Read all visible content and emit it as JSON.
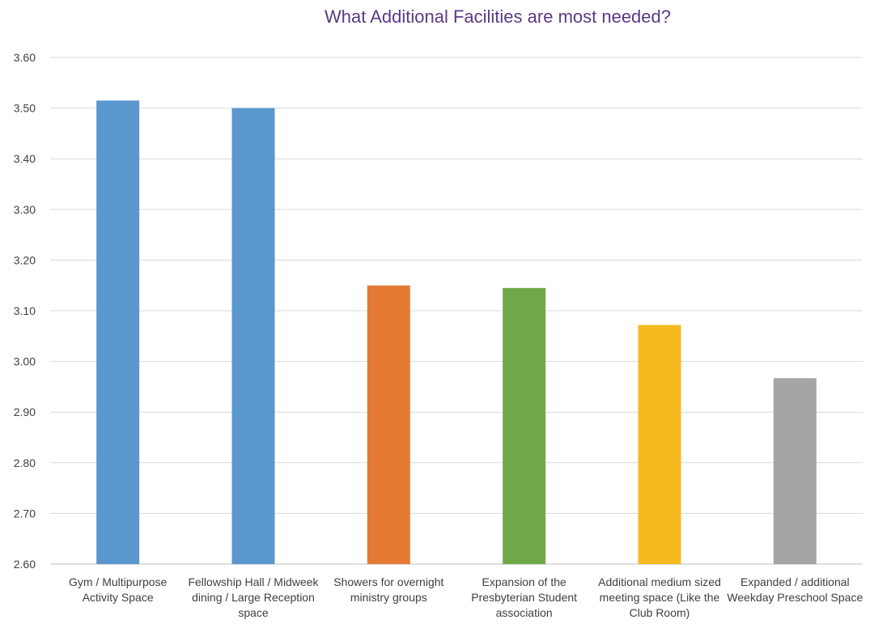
{
  "chart_data": {
    "type": "bar",
    "title": "What Additional Facilities are most needed?",
    "xlabel": "",
    "ylabel": "",
    "ylim": [
      2.6,
      3.6
    ],
    "yticks": [
      "2.60",
      "2.70",
      "2.80",
      "2.90",
      "3.00",
      "3.10",
      "3.20",
      "3.30",
      "3.40",
      "3.50",
      "3.60"
    ],
    "grid": true,
    "categories": [
      "Gym / Multipurpose\nActivity Space",
      "Fellowship Hall / Midweek\ndining / Large Reception\nspace",
      "Showers for overnight\nministry groups",
      "Expansion of the\nPresbyterian Student\nassociation",
      "Additional medium sized\nmeeting space (Like the\nClub Room)",
      "Expanded / additional\nWeekday Preschool Space"
    ],
    "values": [
      3.515,
      3.5,
      3.15,
      3.145,
      3.072,
      2.967
    ],
    "colors": [
      "#5b97cf",
      "#5b97cf",
      "#e57a34",
      "#70a84a",
      "#f5ba1f",
      "#a5a5a5"
    ]
  }
}
